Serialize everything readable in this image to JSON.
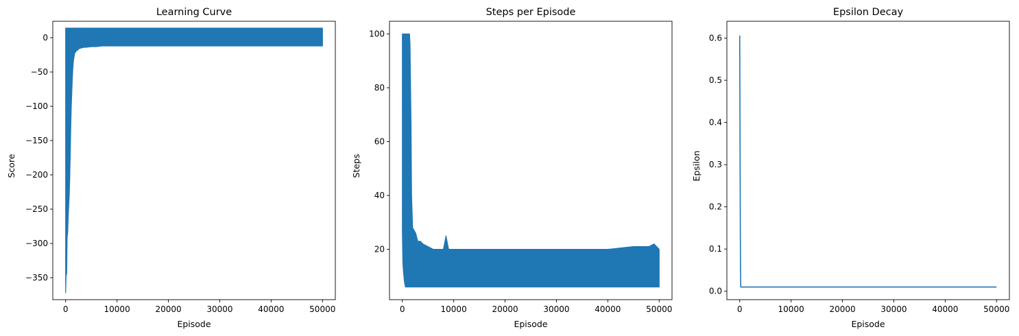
{
  "chart_data": [
    {
      "type": "line",
      "title": "Learning Curve",
      "xlabel": "Episode",
      "ylabel": "Score",
      "xlim": [
        -2500,
        52500
      ],
      "ylim": [
        -382,
        24
      ],
      "xticks": [
        0,
        10000,
        20000,
        30000,
        40000,
        50000
      ],
      "xtick_labels": [
        "0",
        "10000",
        "20000",
        "30000",
        "40000",
        "50000"
      ],
      "yticks": [
        0,
        -50,
        -100,
        -150,
        -200,
        -250,
        -300,
        -350
      ],
      "ytick_labels": [
        "0",
        "−50",
        "−100",
        "−150",
        "−200",
        "−250",
        "−300",
        "−350"
      ],
      "grid": false,
      "color": "#1f77b4",
      "series": [
        {
          "x": [
            0,
            100,
            200,
            300,
            400,
            500,
            600,
            700,
            800,
            900,
            1000,
            1100,
            1200,
            1300,
            1400,
            1500,
            1600,
            1700,
            1800,
            2000,
            2300,
            2600,
            3000,
            3500,
            4000,
            5000,
            6000,
            7000,
            8000,
            9000,
            10000,
            12000,
            15000,
            18000,
            21000,
            25000,
            28000,
            31000,
            34000,
            37000,
            40000,
            43000,
            46000,
            48000,
            50000
          ],
          "min": [
            -372,
            -343,
            -345,
            -290,
            -285,
            -262,
            -245,
            -230,
            -205,
            -170,
            -130,
            -100,
            -80,
            -60,
            -45,
            -35,
            -30,
            -25,
            -22,
            -20,
            -18,
            -16,
            -15,
            -14,
            -14,
            -13,
            -13,
            -12,
            -12,
            -12,
            -12,
            -12,
            -12,
            -12,
            -12,
            -12,
            -12,
            -12,
            -12,
            -12,
            -12,
            -12,
            -12,
            -12,
            -12
          ],
          "max": [
            14,
            14,
            14,
            14,
            14,
            14,
            14,
            14,
            14,
            14,
            14,
            14,
            14,
            14,
            14,
            14,
            14,
            14,
            14,
            14,
            14,
            14,
            14,
            14,
            14,
            14,
            14,
            14,
            14,
            14,
            14,
            14,
            14,
            14,
            14,
            14,
            14,
            14,
            14,
            14,
            14,
            14,
            14,
            14,
            14
          ]
        }
      ]
    },
    {
      "type": "line",
      "title": "Steps per Episode",
      "xlabel": "Episode",
      "ylabel": "Steps",
      "xlim": [
        -2500,
        52500
      ],
      "ylim": [
        1.3,
        104.7
      ],
      "xticks": [
        0,
        10000,
        20000,
        30000,
        40000,
        50000
      ],
      "xtick_labels": [
        "0",
        "10000",
        "20000",
        "30000",
        "40000",
        "50000"
      ],
      "yticks": [
        20,
        40,
        60,
        80,
        100
      ],
      "ytick_labels": [
        "20",
        "40",
        "60",
        "80",
        "100"
      ],
      "grid": false,
      "color": "#1f77b4",
      "series": [
        {
          "x": [
            0,
            100,
            200,
            300,
            400,
            500,
            600,
            700,
            800,
            900,
            1000,
            1100,
            1200,
            1300,
            1400,
            1500,
            1600,
            1700,
            1800,
            2000,
            2300,
            2600,
            3000,
            3500,
            4000,
            5000,
            6000,
            7000,
            8000,
            8500,
            9000,
            10000,
            15000,
            20000,
            25000,
            30000,
            35000,
            40000,
            45000,
            48000,
            49000,
            50000
          ],
          "min": [
            27,
            15,
            12,
            10,
            8,
            7,
            6,
            6,
            6,
            6,
            6,
            6,
            6,
            6,
            6,
            6,
            6,
            6,
            6,
            6,
            6,
            6,
            6,
            6,
            6,
            6,
            6,
            6,
            6,
            6,
            6,
            6,
            6,
            6,
            6,
            6,
            6,
            6,
            6,
            6,
            6,
            6
          ],
          "max": [
            100,
            100,
            100,
            100,
            100,
            100,
            100,
            100,
            100,
            100,
            100,
            100,
            100,
            100,
            100,
            96,
            81,
            66,
            40,
            28,
            27,
            26,
            23,
            23,
            22,
            21,
            20,
            20,
            20,
            25,
            20,
            20,
            20,
            20,
            20,
            20,
            20,
            20,
            21,
            21,
            22,
            20
          ]
        }
      ]
    },
    {
      "type": "line",
      "title": "Epsilon Decay",
      "xlabel": "Episode",
      "ylabel": "Epsilon",
      "xlim": [
        -2500,
        52500
      ],
      "ylim": [
        -0.02,
        0.64
      ],
      "xticks": [
        0,
        10000,
        20000,
        30000,
        40000,
        50000
      ],
      "xtick_labels": [
        "0",
        "10000",
        "20000",
        "30000",
        "40000",
        "50000"
      ],
      "yticks": [
        0.0,
        0.1,
        0.2,
        0.3,
        0.4,
        0.5,
        0.6
      ],
      "ytick_labels": [
        "0.0",
        "0.1",
        "0.2",
        "0.3",
        "0.4",
        "0.5",
        "0.6"
      ],
      "grid": false,
      "color": "#1f77b4",
      "series": [
        {
          "x": [
            0,
            50,
            100,
            150,
            200,
            300,
            500,
            1000,
            10000,
            20000,
            30000,
            40000,
            50000
          ],
          "y": [
            0.606,
            0.4,
            0.2,
            0.05,
            0.01,
            0.01,
            0.01,
            0.01,
            0.01,
            0.01,
            0.01,
            0.01,
            0.01
          ]
        }
      ]
    }
  ]
}
